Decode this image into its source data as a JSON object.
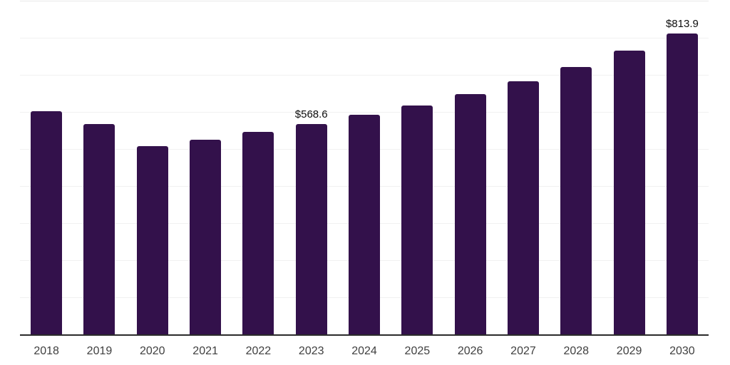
{
  "chart": {
    "background_color": "#ffffff",
    "bar_color": "#33114b",
    "axis_line_color": "#2b2b2b",
    "gridline_color": "#f1f1f1",
    "top_gridline_color": "#e9e9e9",
    "tick_label_color": "#404040",
    "data_label_color": "#0d0d0d"
  },
  "chart_data": {
    "type": "bar",
    "title": "",
    "xlabel": "",
    "ylabel": "",
    "categories": [
      "2018",
      "2019",
      "2020",
      "2021",
      "2022",
      "2023",
      "2024",
      "2025",
      "2026",
      "2027",
      "2028",
      "2029",
      "2030"
    ],
    "values": [
      603,
      570,
      510,
      527,
      548,
      568.6,
      594,
      620,
      650,
      684,
      724,
      767,
      813.9
    ],
    "data_labels": [
      "",
      "",
      "",
      "",
      "",
      "$568.6",
      "",
      "",
      "",
      "",
      "",
      "",
      "$813.9"
    ],
    "ylim": [
      0,
      900
    ],
    "gridline_step": 100,
    "grid": true,
    "legend": false
  }
}
